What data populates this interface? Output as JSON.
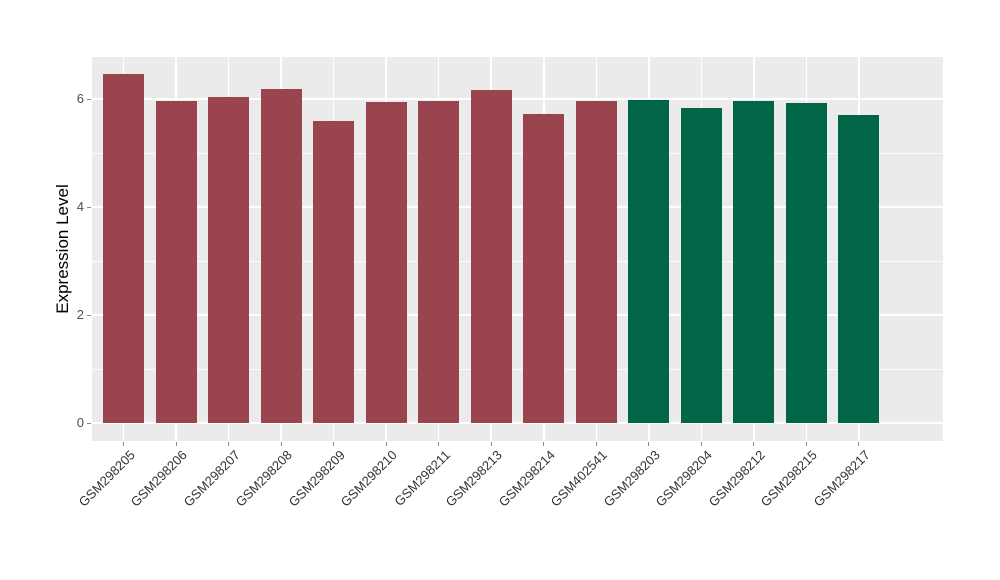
{
  "chart_data": {
    "type": "bar",
    "title": "",
    "xlabel": "",
    "ylabel": "Expression Level",
    "categories": [
      "GSM298205",
      "GSM298206",
      "GSM298207",
      "GSM298208",
      "GSM298209",
      "GSM298210",
      "GSM298211",
      "GSM298213",
      "GSM298214",
      "GSM402541",
      "GSM298203",
      "GSM298204",
      "GSM298212",
      "GSM298215",
      "GSM298217"
    ],
    "values": [
      6.46,
      5.96,
      6.04,
      6.18,
      5.59,
      5.95,
      5.97,
      6.17,
      5.73,
      5.96,
      5.98,
      5.84,
      5.97,
      5.92,
      5.7
    ],
    "groups": [
      "group1",
      "group1",
      "group1",
      "group1",
      "group1",
      "group1",
      "group1",
      "group1",
      "group1",
      "group1",
      "group2",
      "group2",
      "group2",
      "group2",
      "group2"
    ],
    "group_colors": {
      "group1": "#9A4450",
      "group2": "#006647"
    },
    "y_ticks": [
      0,
      2,
      4,
      6
    ],
    "y_minor_ticks": [
      1,
      3,
      5
    ],
    "ylim": [
      -0.33,
      6.78
    ],
    "x_tick_rotation": -45,
    "grid": true,
    "legend": "none",
    "panel_bg": "#EBEBEB",
    "grid_color": "#FFFFFF"
  }
}
